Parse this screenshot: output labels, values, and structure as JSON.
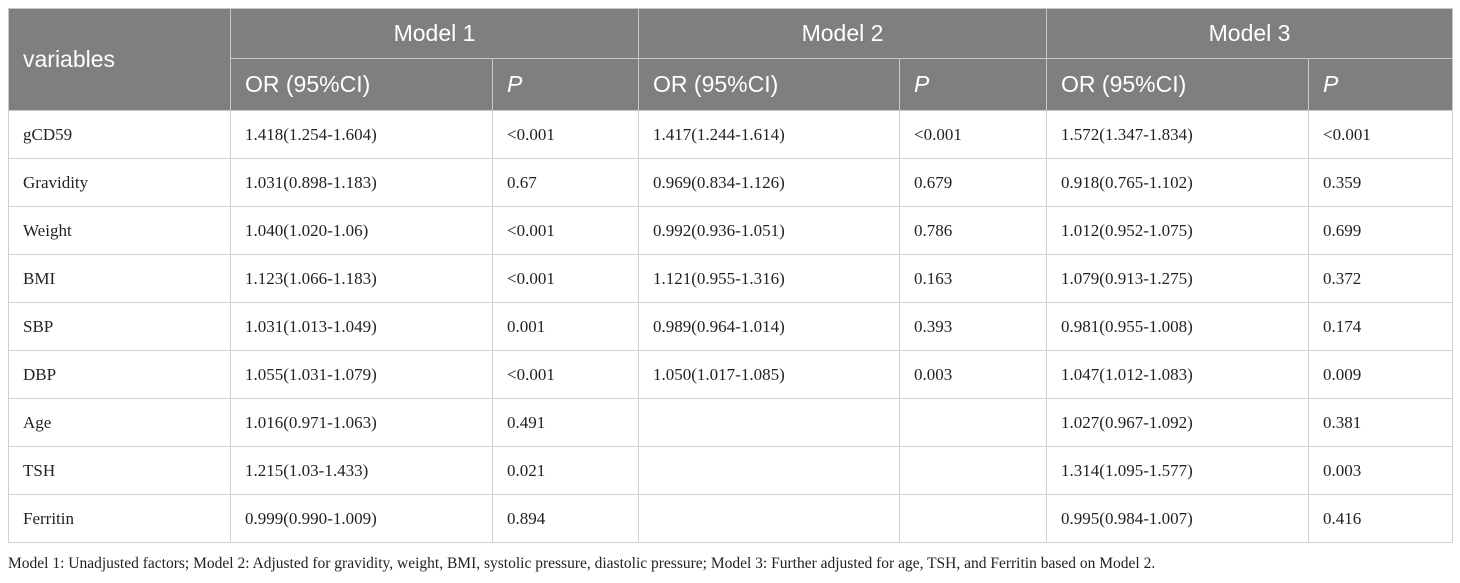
{
  "header": {
    "variables": "variables",
    "models": [
      {
        "name": "Model 1",
        "columns": [
          "OR (95%CI)",
          "P"
        ]
      },
      {
        "name": "Model 2",
        "columns": [
          "OR (95%CI)",
          "P"
        ]
      },
      {
        "name": "Model 3",
        "columns": [
          "OR (95%CI)",
          "P"
        ]
      }
    ]
  },
  "table": {
    "rows": [
      [
        "gCD59",
        "1.418(1.254-1.604)",
        "<0.001",
        "1.417(1.244-1.614)",
        "<0.001",
        "1.572(1.347-1.834)",
        "<0.001"
      ],
      [
        "Gravidity",
        "1.031(0.898-1.183)",
        "0.67",
        "0.969(0.834-1.126)",
        "0.679",
        "0.918(0.765-1.102)",
        "0.359"
      ],
      [
        "Weight",
        "1.040(1.020-1.06)",
        "<0.001",
        "0.992(0.936-1.051)",
        "0.786",
        "1.012(0.952-1.075)",
        "0.699"
      ],
      [
        "BMI",
        "1.123(1.066-1.183)",
        "<0.001",
        "1.121(0.955-1.316)",
        "0.163",
        "1.079(0.913-1.275)",
        "0.372"
      ],
      [
        "SBP",
        "1.031(1.013-1.049)",
        "0.001",
        "0.989(0.964-1.014)",
        "0.393",
        "0.981(0.955-1.008)",
        "0.174"
      ],
      [
        "DBP",
        "1.055(1.031-1.079)",
        "<0.001",
        "1.050(1.017-1.085)",
        "0.003",
        "1.047(1.012-1.083)",
        "0.009"
      ],
      [
        "Age",
        "1.016(0.971-1.063)",
        "0.491",
        null,
        null,
        "1.027(0.967-1.092)",
        "0.381"
      ],
      [
        "TSH",
        "1.215(1.03-1.433)",
        "0.021",
        null,
        null,
        "1.314(1.095-1.577)",
        "0.003"
      ],
      [
        "Ferritin",
        "0.999(0.990-1.009)",
        "0.894",
        null,
        null,
        "0.995(0.984-1.007)",
        "0.416"
      ]
    ]
  },
  "footnote": "Model 1: Unadjusted factors; Model 2: Adjusted for gravidity, weight, BMI, systolic pressure, diastolic pressure; Model 3: Further adjusted for age, TSH, and Ferritin based on Model 2."
}
